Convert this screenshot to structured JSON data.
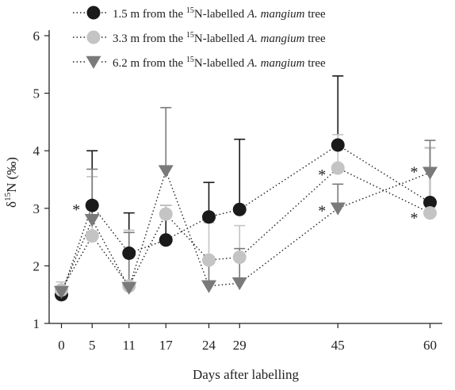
{
  "chart_data": {
    "type": "line",
    "xlabel": "Days after labelling",
    "ylabel_main": "δ",
    "ylabel_sup": "15",
    "ylabel_rest": "N (‰)",
    "x_ticks": [
      "0",
      "5",
      "11",
      "17",
      "24",
      "29",
      "45",
      "60"
    ],
    "y_ticks": [
      "1",
      "2",
      "3",
      "4",
      "5",
      "6"
    ],
    "xlim": [
      -2,
      62
    ],
    "ylim": [
      1,
      6
    ],
    "x": [
      0,
      5,
      11,
      17,
      24,
      29,
      45,
      60
    ],
    "grid": false,
    "legend_position": "top-left",
    "series": [
      {
        "name": "1.5 m from the 15N-labelled A. mangium tree",
        "legend": {
          "pre": "1.5 m from the ",
          "sup": "15",
          "mid": "N-labelled ",
          "ital": "A. mangium",
          "post": " tree"
        },
        "marker": "circle",
        "color": "#1a1a1a",
        "values": [
          1.5,
          3.05,
          2.22,
          2.45,
          2.85,
          2.98,
          4.1,
          3.1
        ],
        "err_upper": [
          1.62,
          4.0,
          2.92,
          3.05,
          3.45,
          4.2,
          5.3,
          4.05
        ]
      },
      {
        "name": "3.3 m from the 15N-labelled A. mangium tree",
        "legend": {
          "pre": "3.3 m from the ",
          "sup": "15",
          "mid": "N-labelled ",
          "ital": "A. mangium",
          "post": " tree"
        },
        "marker": "circle",
        "color": "#c4c4c4",
        "values": [
          1.58,
          2.52,
          1.65,
          2.9,
          2.1,
          2.15,
          3.7,
          2.92
        ],
        "err_upper": [
          1.72,
          3.55,
          2.62,
          3.05,
          2.75,
          2.7,
          4.28,
          4.05
        ]
      },
      {
        "name": "6.2 m from the 15N-labelled A. mangium tree",
        "legend": {
          "pre": "6.2 m from the ",
          "sup": "15",
          "mid": "N-labelled ",
          "ital": "A. mangium",
          "post": " tree"
        },
        "marker": "triangle",
        "color": "#7a7a7a",
        "values": [
          1.55,
          2.8,
          1.62,
          3.65,
          1.65,
          1.7,
          3.0,
          3.62
        ],
        "err_upper": [
          1.62,
          3.68,
          2.58,
          4.75,
          2.05,
          2.3,
          3.42,
          4.18
        ]
      }
    ],
    "annotations": [
      {
        "text": "*",
        "x": 5,
        "y": 3.0,
        "side": "left"
      },
      {
        "text": "*",
        "x": 45,
        "y": 3.6,
        "side": "left"
      },
      {
        "text": "*",
        "x": 45,
        "y": 2.98,
        "side": "left"
      },
      {
        "text": "*",
        "x": 60,
        "y": 3.65,
        "side": "left"
      },
      {
        "text": "*",
        "x": 60,
        "y": 2.85,
        "side": "left"
      }
    ]
  }
}
